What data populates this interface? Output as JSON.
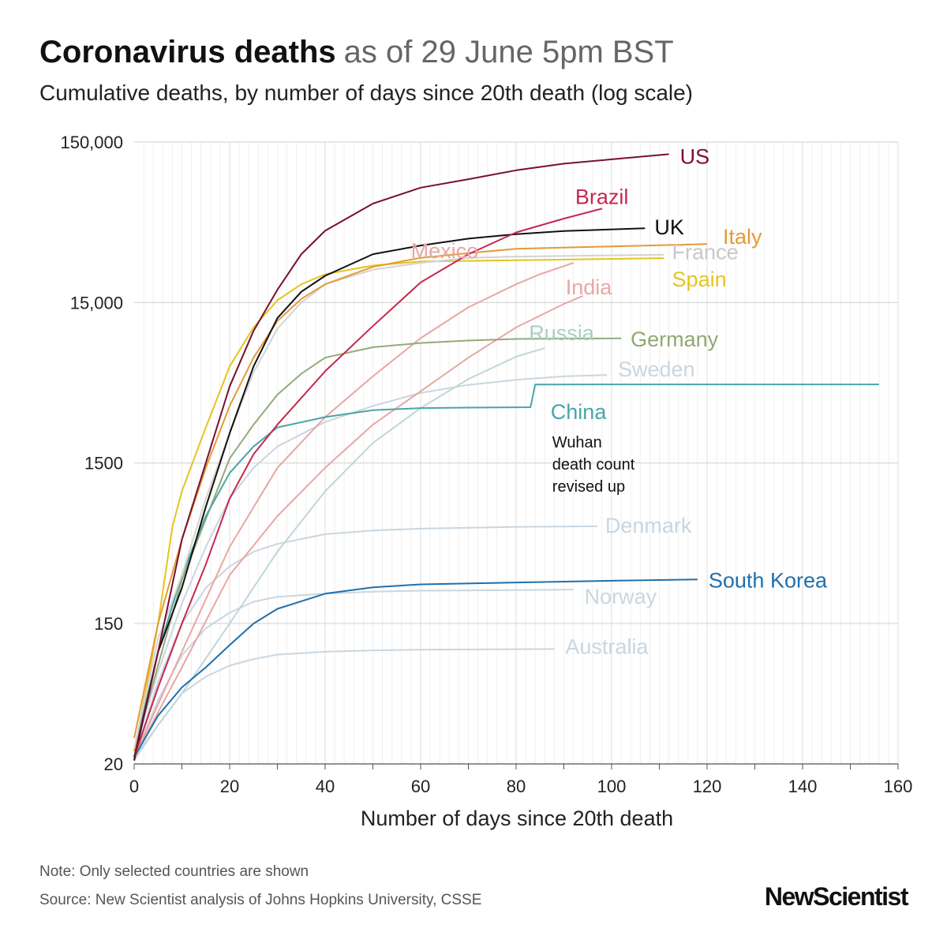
{
  "header": {
    "title": "Coronavirus deaths",
    "date": "as of 29 June 5pm BST",
    "subtitle": "Cumulative deaths, by number of days since 20th death (log scale)"
  },
  "footer": {
    "note": "Note: Only selected countries are shown",
    "source": "Source: New Scientist analysis of Johns Hopkins University, CSSE",
    "logo": "NewScientist"
  },
  "chart_data": {
    "type": "line",
    "title": "Coronavirus deaths",
    "subtitle": "Cumulative deaths, by number of days since 20th death (log scale)",
    "xlabel": "Number of days since 20th death",
    "ylabel": "",
    "yscale": "log",
    "xlim": [
      0,
      160
    ],
    "ylim": [
      20,
      150000
    ],
    "xticks": [
      0,
      20,
      40,
      60,
      80,
      100,
      120,
      140,
      160
    ],
    "xtick_labels": [
      "0",
      "20",
      "40",
      "60",
      "80",
      "100",
      "120",
      "140",
      "160"
    ],
    "yticks": [
      20,
      150,
      1500,
      15000,
      150000
    ],
    "ytick_labels": [
      "20",
      "150",
      "1500",
      "15,000",
      "150,000"
    ],
    "grid": true,
    "series": [
      {
        "name": "Australia",
        "color": "#c9d6e0",
        "points": [
          [
            0,
            21
          ],
          [
            5,
            35
          ],
          [
            10,
            55
          ],
          [
            15,
            70
          ],
          [
            20,
            82
          ],
          [
            25,
            90
          ],
          [
            30,
            96
          ],
          [
            40,
            100
          ],
          [
            50,
            102
          ],
          [
            60,
            103
          ],
          [
            88,
            104
          ]
        ]
      },
      {
        "name": "Norway",
        "color": "#c9d6e0",
        "points": [
          [
            0,
            22
          ],
          [
            5,
            50
          ],
          [
            10,
            95
          ],
          [
            15,
            140
          ],
          [
            20,
            175
          ],
          [
            25,
            205
          ],
          [
            30,
            220
          ],
          [
            40,
            230
          ],
          [
            50,
            237
          ],
          [
            60,
            240
          ],
          [
            80,
            242
          ],
          [
            92,
            244
          ]
        ]
      },
      {
        "name": "Denmark",
        "color": "#c9d6e0",
        "points": [
          [
            0,
            22
          ],
          [
            5,
            65
          ],
          [
            10,
            150
          ],
          [
            15,
            250
          ],
          [
            20,
            340
          ],
          [
            25,
            420
          ],
          [
            30,
            470
          ],
          [
            40,
            540
          ],
          [
            50,
            570
          ],
          [
            60,
            585
          ],
          [
            80,
            600
          ],
          [
            97,
            605
          ]
        ]
      },
      {
        "name": "Sweden",
        "color": "#c9d6e0",
        "points": [
          [
            0,
            24
          ],
          [
            5,
            75
          ],
          [
            10,
            200
          ],
          [
            15,
            450
          ],
          [
            20,
            900
          ],
          [
            25,
            1400
          ],
          [
            30,
            1900
          ],
          [
            40,
            2700
          ],
          [
            50,
            3400
          ],
          [
            60,
            4100
          ],
          [
            70,
            4600
          ],
          [
            80,
            4950
          ],
          [
            90,
            5200
          ],
          [
            99,
            5300
          ]
        ]
      },
      {
        "name": "Russia",
        "color": "#bfd8d2",
        "points": [
          [
            0,
            22
          ],
          [
            10,
            55
          ],
          [
            20,
            150
          ],
          [
            30,
            420
          ],
          [
            40,
            1000
          ],
          [
            50,
            2000
          ],
          [
            60,
            3300
          ],
          [
            70,
            5000
          ],
          [
            80,
            6900
          ],
          [
            86,
            7800
          ]
        ]
      },
      {
        "name": "India",
        "color": "#e8a7a4",
        "points": [
          [
            0,
            22
          ],
          [
            10,
            80
          ],
          [
            20,
            300
          ],
          [
            30,
            700
          ],
          [
            40,
            1400
          ],
          [
            50,
            2600
          ],
          [
            60,
            4200
          ],
          [
            70,
            6800
          ],
          [
            80,
            10500
          ],
          [
            90,
            14700
          ],
          [
            94,
            16500
          ]
        ]
      },
      {
        "name": "Mexico",
        "color": "#e8a7a4",
        "points": [
          [
            0,
            22
          ],
          [
            10,
            100
          ],
          [
            20,
            450
          ],
          [
            30,
            1400
          ],
          [
            40,
            2900
          ],
          [
            50,
            5200
          ],
          [
            60,
            9000
          ],
          [
            70,
            14000
          ],
          [
            80,
            19500
          ],
          [
            85,
            22500
          ],
          [
            92,
            26500
          ]
        ]
      },
      {
        "name": "Germany",
        "color": "#93ab7a",
        "points": [
          [
            0,
            24
          ],
          [
            10,
            280
          ],
          [
            20,
            1600
          ],
          [
            25,
            2600
          ],
          [
            30,
            4000
          ],
          [
            35,
            5400
          ],
          [
            40,
            6800
          ],
          [
            50,
            7900
          ],
          [
            60,
            8400
          ],
          [
            70,
            8700
          ],
          [
            80,
            8900
          ],
          [
            90,
            8950
          ],
          [
            102,
            8970
          ]
        ]
      },
      {
        "name": "China",
        "color": "#4aa5a7",
        "points": [
          [
            0,
            24
          ],
          [
            5,
            100
          ],
          [
            10,
            300
          ],
          [
            15,
            700
          ],
          [
            20,
            1300
          ],
          [
            25,
            1900
          ],
          [
            30,
            2500
          ],
          [
            40,
            2900
          ],
          [
            50,
            3200
          ],
          [
            60,
            3300
          ],
          [
            70,
            3320
          ],
          [
            83,
            3340
          ],
          [
            84,
            4630
          ],
          [
            156,
            4634
          ]
        ]
      },
      {
        "name": "South Korea",
        "color": "#1f70ad",
        "points": [
          [
            0,
            22
          ],
          [
            5,
            40
          ],
          [
            10,
            60
          ],
          [
            15,
            80
          ],
          [
            20,
            110
          ],
          [
            25,
            150
          ],
          [
            30,
            185
          ],
          [
            40,
            230
          ],
          [
            50,
            252
          ],
          [
            60,
            263
          ],
          [
            80,
            270
          ],
          [
            100,
            277
          ],
          [
            118,
            282
          ]
        ]
      },
      {
        "name": "Spain",
        "color": "#e4c51e",
        "points": [
          [
            0,
            24
          ],
          [
            3,
            70
          ],
          [
            5,
            150
          ],
          [
            8,
            600
          ],
          [
            10,
            1000
          ],
          [
            15,
            2500
          ],
          [
            20,
            6000
          ],
          [
            25,
            10500
          ],
          [
            30,
            15500
          ],
          [
            35,
            19500
          ],
          [
            40,
            22500
          ],
          [
            50,
            25500
          ],
          [
            60,
            27000
          ],
          [
            80,
            27500
          ],
          [
            111,
            28350
          ]
        ]
      },
      {
        "name": "France",
        "color": "#d3d3d3",
        "points": [
          [
            0,
            25
          ],
          [
            5,
            120
          ],
          [
            10,
            300
          ],
          [
            15,
            900
          ],
          [
            20,
            2300
          ],
          [
            25,
            5500
          ],
          [
            30,
            10300
          ],
          [
            35,
            15000
          ],
          [
            40,
            19500
          ],
          [
            50,
            24000
          ],
          [
            60,
            26500
          ],
          [
            70,
            28500
          ],
          [
            80,
            29000
          ],
          [
            111,
            29800
          ]
        ]
      },
      {
        "name": "Italy",
        "color": "#e49a35",
        "points": [
          [
            0,
            29
          ],
          [
            5,
            150
          ],
          [
            10,
            500
          ],
          [
            15,
            1400
          ],
          [
            20,
            3400
          ],
          [
            25,
            6800
          ],
          [
            30,
            11500
          ],
          [
            35,
            15800
          ],
          [
            40,
            19500
          ],
          [
            50,
            25000
          ],
          [
            60,
            28500
          ],
          [
            70,
            30500
          ],
          [
            80,
            32400
          ],
          [
            120,
            34750
          ]
        ]
      },
      {
        "name": "UK",
        "color": "#111111",
        "points": [
          [
            0,
            21
          ],
          [
            5,
            100
          ],
          [
            10,
            250
          ],
          [
            15,
            800
          ],
          [
            20,
            2300
          ],
          [
            25,
            6000
          ],
          [
            30,
            12000
          ],
          [
            35,
            17500
          ],
          [
            40,
            22000
          ],
          [
            50,
            30000
          ],
          [
            60,
            34000
          ],
          [
            70,
            37500
          ],
          [
            80,
            40000
          ],
          [
            90,
            41800
          ],
          [
            107,
            43550
          ]
        ]
      },
      {
        "name": "Brazil",
        "color": "#c6284f",
        "points": [
          [
            0,
            22
          ],
          [
            5,
            60
          ],
          [
            10,
            150
          ],
          [
            15,
            350
          ],
          [
            20,
            900
          ],
          [
            25,
            1700
          ],
          [
            30,
            2600
          ],
          [
            40,
            5600
          ],
          [
            50,
            10700
          ],
          [
            60,
            20000
          ],
          [
            70,
            30000
          ],
          [
            80,
            41000
          ],
          [
            90,
            50000
          ],
          [
            98,
            57700
          ]
        ]
      },
      {
        "name": "US",
        "color": "#7a0f2f",
        "points": [
          [
            0,
            22
          ],
          [
            5,
            100
          ],
          [
            10,
            500
          ],
          [
            15,
            1500
          ],
          [
            20,
            4500
          ],
          [
            25,
            10000
          ],
          [
            30,
            18000
          ],
          [
            35,
            30000
          ],
          [
            40,
            42000
          ],
          [
            50,
            62000
          ],
          [
            60,
            78000
          ],
          [
            70,
            88000
          ],
          [
            80,
            100000
          ],
          [
            90,
            110000
          ],
          [
            100,
            117000
          ],
          [
            112,
            126000
          ]
        ]
      }
    ],
    "labels": [
      {
        "text": "US",
        "series": "US",
        "color": "#7a0f2f"
      },
      {
        "text": "Brazil",
        "series": "Brazil",
        "color": "#c6284f"
      },
      {
        "text": "UK",
        "series": "UK",
        "color": "#111111"
      },
      {
        "text": "Italy",
        "series": "Italy",
        "color": "#e49a35"
      },
      {
        "text": "Mexico",
        "series": "Mexico",
        "color": "#e8a7a4"
      },
      {
        "text": "France",
        "series": "France",
        "color": "#c8c8c8"
      },
      {
        "text": "India",
        "series": "India",
        "color": "#e8a7a4"
      },
      {
        "text": "Spain",
        "series": "Spain",
        "color": "#e4c51e"
      },
      {
        "text": "Russia",
        "series": "Russia",
        "color": "#a9cfc6"
      },
      {
        "text": "Germany",
        "series": "Germany",
        "color": "#8fa874"
      },
      {
        "text": "Sweden",
        "series": "Sweden",
        "color": "#c9d6e0"
      },
      {
        "text": "China",
        "series": "China",
        "color": "#4aa5a7"
      },
      {
        "text": "Denmark",
        "series": "Denmark",
        "color": "#c9d6e0"
      },
      {
        "text": "South Korea",
        "series": "South Korea",
        "color": "#1f70ad"
      },
      {
        "text": "Norway",
        "series": "Norway",
        "color": "#c9d6e0"
      },
      {
        "text": "Australia",
        "series": "Australia",
        "color": "#c9d6e0"
      }
    ],
    "annotation": {
      "lines": [
        "Wuhan",
        "death count",
        "revised up"
      ],
      "series": "China"
    }
  }
}
